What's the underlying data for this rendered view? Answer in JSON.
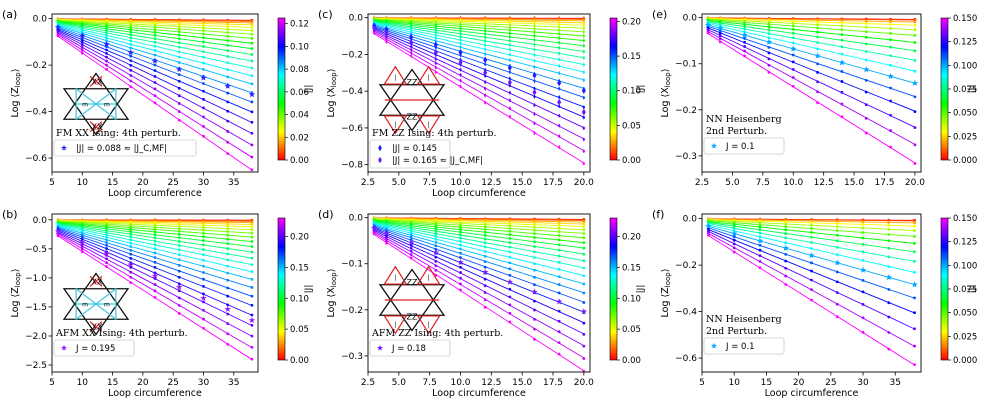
{
  "figure": {
    "colorbar_label": "|J|",
    "colormap": [
      "#ff0000",
      "#ff8000",
      "#ffff00",
      "#80ff00",
      "#00ff00",
      "#00ff80",
      "#00ffff",
      "#0080ff",
      "#0000ff",
      "#8000ff",
      "#ff00ff"
    ]
  },
  "chart_data": [
    {
      "id": "a",
      "type": "scatter",
      "panel_label": "(a)",
      "xlabel": "Loop circumference",
      "ylabel": "Log ⟨Z_loop⟩",
      "xlim": [
        5,
        39
      ],
      "ylim": [
        -0.66,
        0.02
      ],
      "xticks": [
        5,
        10,
        15,
        20,
        25,
        30,
        35
      ],
      "yticks": [
        0.0,
        -0.2,
        -0.4,
        -0.6
      ],
      "x": [
        6,
        10,
        14,
        18,
        22,
        26,
        30,
        34,
        38
      ],
      "fit_range": [
        6,
        38
      ],
      "series_count": 24,
      "slope_max": -0.0178,
      "cbar_ticks": [
        0.0,
        0.02,
        0.04,
        0.06,
        0.08,
        0.1,
        0.12
      ],
      "cbar_max": 0.125,
      "highlight": {
        "frac": 0.704,
        "color": "#2828ff"
      },
      "legend": {
        "title_lines": [
          "FM XX Ising: 4th perturb."
        ],
        "entry": "|J| = 0.088 ≈ |J_C,MF|",
        "marker": "star"
      },
      "lattice": {
        "bond_label": "XX",
        "red_layout": "wing",
        "center_label": "m"
      }
    },
    {
      "id": "b",
      "type": "scatter",
      "panel_label": "(b)",
      "xlabel": "Loop circumference",
      "ylabel": "Log ⟨Z_loop⟩",
      "xlim": [
        5,
        39
      ],
      "ylim": [
        -2.62,
        0.1
      ],
      "xticks": [
        5,
        10,
        15,
        20,
        25,
        30,
        35
      ],
      "yticks": [
        0.0,
        -0.5,
        -1.0,
        -1.5,
        -2.0,
        -2.5
      ],
      "x": [
        6,
        10,
        14,
        18,
        22,
        26,
        30,
        34,
        38
      ],
      "fit_range": [
        6,
        38
      ],
      "series_count": 24,
      "slope_max": -0.0662,
      "cbar_ticks": [
        0.0,
        0.05,
        0.1,
        0.15,
        0.2
      ],
      "cbar_max": 0.23,
      "highlight": {
        "frac": 0.848,
        "color": "#9a1aff"
      },
      "legend": {
        "title_lines": [
          "AFM XX Ising: 4th perturb."
        ],
        "entry": "J = 0.195",
        "marker": "star"
      },
      "lattice": {
        "bond_label": "XX",
        "red_layout": "wing",
        "center_label": "m"
      }
    },
    {
      "id": "c",
      "type": "scatter",
      "panel_label": "(c)",
      "xlabel": "Loop circumference",
      "ylabel": "Log ⟨X_loop⟩",
      "xlim": [
        2.5,
        20.5
      ],
      "ylim": [
        -0.84,
        0.02
      ],
      "xticks": [
        2.5,
        5.0,
        7.5,
        10.0,
        12.5,
        15.0,
        17.5,
        20.0
      ],
      "yticks": [
        0.0,
        -0.2,
        -0.4,
        -0.6,
        -0.8
      ],
      "x": [
        3,
        4,
        6,
        8,
        10,
        12,
        14,
        16,
        18,
        20
      ],
      "fit_range": [
        3,
        20
      ],
      "series_count": 24,
      "slope_max": -0.0412,
      "cbar_ticks": [
        0.0,
        0.05,
        0.1,
        0.15,
        0.2
      ],
      "cbar_max": 0.205,
      "highlight": {
        "frac": 0.707,
        "color": "#2020ff",
        "frac2": 0.805,
        "color2": "#6a1aff"
      },
      "legend": {
        "title_lines": [
          "FM ZZ Ising: 4th perturb."
        ],
        "entry": "|J| = 0.145",
        "entry2": "|J| = 0.165 ≈ |J_C,MF|",
        "marker": "diamond"
      },
      "lattice": {
        "bond_label": "ZZ",
        "red_layout": "triangles",
        "center_label": ""
      }
    },
    {
      "id": "d",
      "type": "scatter",
      "panel_label": "(d)",
      "xlabel": "Loop circumference",
      "ylabel": "Log ⟨X_loop⟩",
      "xlim": [
        2.5,
        20.5
      ],
      "ylim": [
        -0.335,
        0.008
      ],
      "xticks": [
        2.5,
        5.0,
        7.5,
        10.0,
        12.5,
        15.0,
        17.5,
        20.0
      ],
      "yticks": [
        0.0,
        -0.1,
        -0.2,
        -0.3
      ],
      "x": [
        3,
        4,
        6,
        8,
        10,
        12,
        14,
        16,
        18,
        20
      ],
      "fit_range": [
        3,
        20
      ],
      "series_count": 24,
      "slope_max": -0.0172,
      "cbar_ticks": [
        0.0,
        0.05,
        0.1,
        0.15,
        0.2
      ],
      "cbar_max": 0.23,
      "highlight": {
        "frac": 0.78,
        "color": "#7a20ff"
      },
      "legend": {
        "title_lines": [
          "AFM ZZ Ising: 4th perturb."
        ],
        "entry": "J = 0.18",
        "marker": "star"
      },
      "lattice": {
        "bond_label": "ZZ",
        "red_layout": "triangles",
        "center_label": ""
      }
    },
    {
      "id": "e",
      "type": "scatter",
      "panel_label": "(e)",
      "xlabel": "",
      "ylabel": "Log ⟨X_loop⟩",
      "xlim": [
        2.5,
        20.5
      ],
      "ylim": [
        -0.335,
        0.008
      ],
      "xticks": [
        2.5,
        5.0,
        7.5,
        10.0,
        12.5,
        15.0,
        17.5,
        20.0
      ],
      "yticks": [
        0.0,
        -0.1,
        -0.2,
        -0.3
      ],
      "x": [
        3,
        4,
        6,
        8,
        10,
        12,
        14,
        16,
        18,
        20
      ],
      "fit_range": [
        3,
        20
      ],
      "series_count": 16,
      "slope_max": -0.0163,
      "cbar_ticks": [
        0.0,
        0.025,
        0.05,
        0.075,
        0.1,
        0.125,
        0.15
      ],
      "cbar_max": 0.15,
      "highlight": {
        "frac": 0.667,
        "color": "#00a8ff"
      },
      "legend": {
        "title_lines": [
          "NN Heisenberg",
          "2nd Perturb."
        ],
        "entry": "J = 0.1",
        "marker": "star"
      },
      "lattice": null
    },
    {
      "id": "f",
      "type": "scatter",
      "panel_label": "(f)",
      "xlabel": "Loop circumference",
      "ylabel": "Log ⟨Z_loop⟩",
      "xlim": [
        5,
        39
      ],
      "ylim": [
        -0.66,
        0.02
      ],
      "xticks": [
        5,
        10,
        15,
        20,
        25,
        30,
        35
      ],
      "yticks": [
        0.0,
        -0.2,
        -0.4,
        -0.6
      ],
      "x": [
        6,
        10,
        14,
        18,
        22,
        26,
        30,
        34,
        38
      ],
      "fit_range": [
        6,
        38
      ],
      "series_count": 16,
      "slope_max": -0.0172,
      "cbar_ticks": [
        0.0,
        0.025,
        0.05,
        0.075,
        0.1,
        0.125,
        0.15
      ],
      "cbar_max": 0.15,
      "highlight": {
        "frac": 0.667,
        "color": "#00a8ff"
      },
      "legend": {
        "title_lines": [
          "NN Heisenberg",
          "2nd Perturb."
        ],
        "entry": "J = 0.1",
        "marker": "star"
      },
      "lattice": null
    }
  ]
}
